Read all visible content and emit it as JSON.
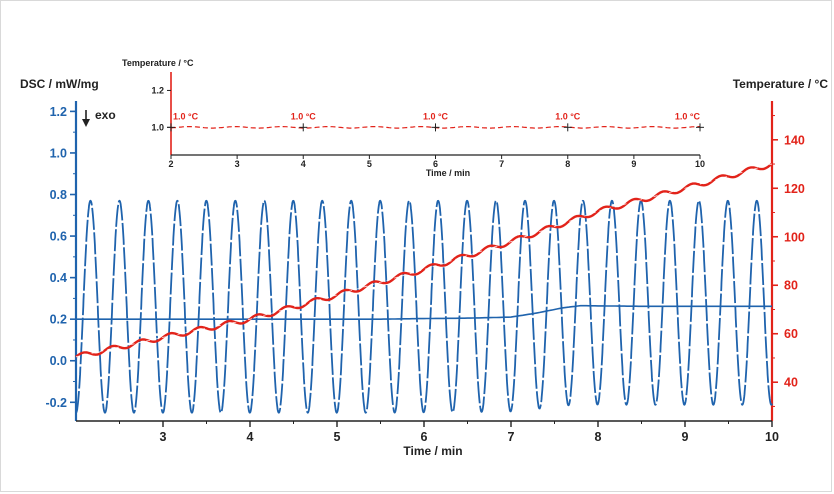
{
  "colors": {
    "dsc": "#1f63ad",
    "temperature": "#e2231a",
    "axis_dark": "#222222",
    "frame": "#d9d9d9"
  },
  "chart_data": [
    {
      "type": "line",
      "role": "main",
      "x": {
        "label": "Time / min",
        "range": [
          2.0,
          10.0
        ],
        "ticks": [
          "3",
          "4",
          "5",
          "6",
          "7",
          "8",
          "9",
          "10"
        ]
      },
      "y_left": {
        "label": "DSC / mW/mg",
        "range": [
          -0.29,
          1.25
        ],
        "ticks": [
          "-0.2",
          "0.0",
          "0.2",
          "0.4",
          "0.6",
          "0.8",
          "1.0",
          "1.2"
        ]
      },
      "y_right": {
        "label": "Temperature / °C",
        "range": [
          24,
          156
        ],
        "ticks": [
          "40",
          "60",
          "80",
          "100",
          "120",
          "140"
        ]
      },
      "annotation": "exo",
      "series": [
        {
          "axis": "left",
          "style": "solid",
          "modulation_period_min": 0.333,
          "points": [
            [
              2.0,
              0.2
            ],
            [
              2.5,
              0.2
            ],
            [
              3.0,
              0.2
            ],
            [
              3.5,
              0.2
            ],
            [
              4.0,
              0.2
            ],
            [
              4.5,
              0.2
            ],
            [
              5.0,
              0.2
            ],
            [
              5.5,
              0.2
            ],
            [
              6.0,
              0.203
            ],
            [
              6.5,
              0.205
            ],
            [
              7.0,
              0.21
            ],
            [
              7.3,
              0.23
            ],
            [
              7.6,
              0.255
            ],
            [
              7.8,
              0.265
            ],
            [
              8.0,
              0.264
            ],
            [
              8.5,
              0.262
            ],
            [
              9.0,
              0.262
            ],
            [
              9.5,
              0.262
            ],
            [
              10.0,
              0.262
            ]
          ],
          "oscillation_range": [
            -0.25,
            0.77
          ]
        },
        {
          "axis": "right",
          "style": "solid",
          "modulation_period_min": 0.333,
          "points": [
            [
              2.0,
              50.5
            ],
            [
              3.0,
              58.5
            ],
            [
              4.0,
              66
            ],
            [
              5.0,
              76
            ],
            [
              6.0,
              86.5
            ],
            [
              7.0,
              98
            ],
            [
              8.0,
              110.5
            ],
            [
              9.0,
              120
            ],
            [
              10.0,
              130
            ]
          ]
        }
      ]
    },
    {
      "type": "line",
      "role": "inset",
      "title": "Temperature / °C",
      "x": {
        "label": "Time / min",
        "range": [
          2,
          10
        ],
        "ticks": [
          "2",
          "3",
          "4",
          "5",
          "6",
          "7",
          "8",
          "9",
          "10"
        ]
      },
      "y": {
        "range": [
          0.85,
          1.3
        ],
        "ticks": [
          "1.0",
          "1.2"
        ]
      },
      "series": [
        {
          "style": "dashed",
          "points": [
            [
              2,
              1.0
            ],
            [
              3,
              1.0
            ],
            [
              4,
              1.0
            ],
            [
              5,
              1.0
            ],
            [
              6,
              1.0
            ],
            [
              7,
              1.0
            ],
            [
              8,
              1.0
            ],
            [
              9,
              1.0
            ],
            [
              10,
              1.0
            ]
          ]
        }
      ],
      "annotations": [
        {
          "text": "1.0 °C",
          "x": 2,
          "y": 1.0
        },
        {
          "text": "1.0 °C",
          "x": 4,
          "y": 1.0
        },
        {
          "text": "1.0 °C",
          "x": 6,
          "y": 1.0
        },
        {
          "text": "1.0 °C",
          "x": 8,
          "y": 1.0
        },
        {
          "text": "1.0 °C",
          "x": 10,
          "y": 1.0
        }
      ]
    }
  ]
}
